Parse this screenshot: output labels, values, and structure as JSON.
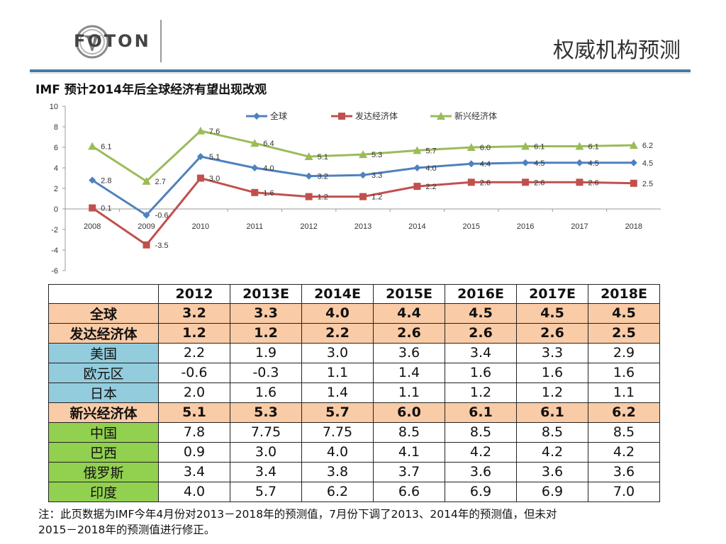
{
  "header": {
    "logo_text": "FOTON",
    "page_title": "权威机构预测",
    "subtitle": "IMF 预计2014年后全球经济有望出现改观"
  },
  "colors": {
    "global": "#4f81bd",
    "developed": "#c0504d",
    "emerging": "#9bbb59",
    "accent_bar": "#4a7aa6",
    "row_orange": "#f9cba6",
    "row_blue": "#93cddd",
    "row_green": "#92d050"
  },
  "chart_data": {
    "type": "line",
    "x": [
      "2008",
      "2009",
      "2010",
      "2011",
      "2012",
      "2013",
      "2014",
      "2015",
      "2016",
      "2017",
      "2018"
    ],
    "ylim": [
      -6,
      10
    ],
    "yticks": [
      -6,
      -4,
      -2,
      0,
      2,
      4,
      6,
      8,
      10
    ],
    "grid": false,
    "legend_position": "top",
    "series": [
      {
        "name": "全球",
        "color": "#4f81bd",
        "marker": "diamond",
        "values": [
          2.8,
          -0.6,
          5.1,
          4.0,
          3.2,
          3.3,
          4.0,
          4.4,
          4.5,
          4.5,
          4.5
        ],
        "labels": [
          "2.8",
          "-0.6",
          "5.1",
          "4.0",
          "3.2",
          "3.3",
          "4.0",
          "4.4",
          "4.5",
          "4.5",
          "4.5"
        ]
      },
      {
        "name": "发达经济体",
        "color": "#c0504d",
        "marker": "square",
        "values": [
          0.1,
          -3.5,
          3.0,
          1.6,
          1.2,
          1.2,
          2.2,
          2.6,
          2.6,
          2.6,
          2.5
        ],
        "labels": [
          "0.1",
          "-3.5",
          "3.0",
          "1.6",
          "1.2",
          "1.2",
          "2.2",
          "2.6",
          "2.6",
          "2.6",
          "2.5"
        ]
      },
      {
        "name": "新兴经济体",
        "color": "#9bbb59",
        "marker": "triangle",
        "values": [
          6.1,
          2.7,
          7.6,
          6.4,
          5.1,
          5.3,
          5.7,
          6.0,
          6.1,
          6.1,
          6.2
        ],
        "labels": [
          "6.1",
          "2.7",
          "7.6",
          "6.4",
          "5.1",
          "5.3",
          "5.7",
          "6.0",
          "6.1",
          "6.1",
          "6.2"
        ]
      }
    ]
  },
  "table": {
    "columns": [
      "",
      "2012",
      "2013E",
      "2014E",
      "2015E",
      "2016E",
      "2017E",
      "2018E"
    ],
    "rows": [
      {
        "label": "全球",
        "values": [
          "3.2",
          "3.3",
          "4.0",
          "4.4",
          "4.5",
          "4.5",
          "4.5"
        ],
        "color": "orange",
        "bold": true
      },
      {
        "label": "发达经济体",
        "values": [
          "1.2",
          "1.2",
          "2.2",
          "2.6",
          "2.6",
          "2.6",
          "2.5"
        ],
        "color": "orange",
        "bold": true
      },
      {
        "label": "美国",
        "values": [
          "2.2",
          "1.9",
          "3.0",
          "3.6",
          "3.4",
          "3.3",
          "2.9"
        ],
        "color": "blue",
        "bold": false
      },
      {
        "label": "欧元区",
        "values": [
          "-0.6",
          "-0.3",
          "1.1",
          "1.4",
          "1.6",
          "1.6",
          "1.6"
        ],
        "color": "blue",
        "bold": false
      },
      {
        "label": "日本",
        "values": [
          "2.0",
          "1.6",
          "1.4",
          "1.1",
          "1.2",
          "1.2",
          "1.1"
        ],
        "color": "blue",
        "bold": false
      },
      {
        "label": "新兴经济体",
        "values": [
          "5.1",
          "5.3",
          "5.7",
          "6.0",
          "6.1",
          "6.1",
          "6.2"
        ],
        "color": "orange",
        "bold": true
      },
      {
        "label": "中国",
        "values": [
          "7.8",
          "7.75",
          "7.75",
          "8.5",
          "8.5",
          "8.5",
          "8.5"
        ],
        "color": "green",
        "bold": false
      },
      {
        "label": "巴西",
        "values": [
          "0.9",
          "3.0",
          "4.0",
          "4.1",
          "4.2",
          "4.2",
          "4.2"
        ],
        "color": "green",
        "bold": false
      },
      {
        "label": "俄罗斯",
        "values": [
          "3.4",
          "3.4",
          "3.8",
          "3.7",
          "3.6",
          "3.6",
          "3.6"
        ],
        "color": "green",
        "bold": false
      },
      {
        "label": "印度",
        "values": [
          "4.0",
          "5.7",
          "6.2",
          "6.6",
          "6.9",
          "6.9",
          "7.0"
        ],
        "color": "green",
        "bold": false
      }
    ]
  },
  "footnote": {
    "line1": "注：此页数据为IMF今年4月份对2013－2018年的预测值，7月份下调了2013、2014年的预测值，但未对",
    "line2": "2015－2018年的预测值进行修正。"
  }
}
